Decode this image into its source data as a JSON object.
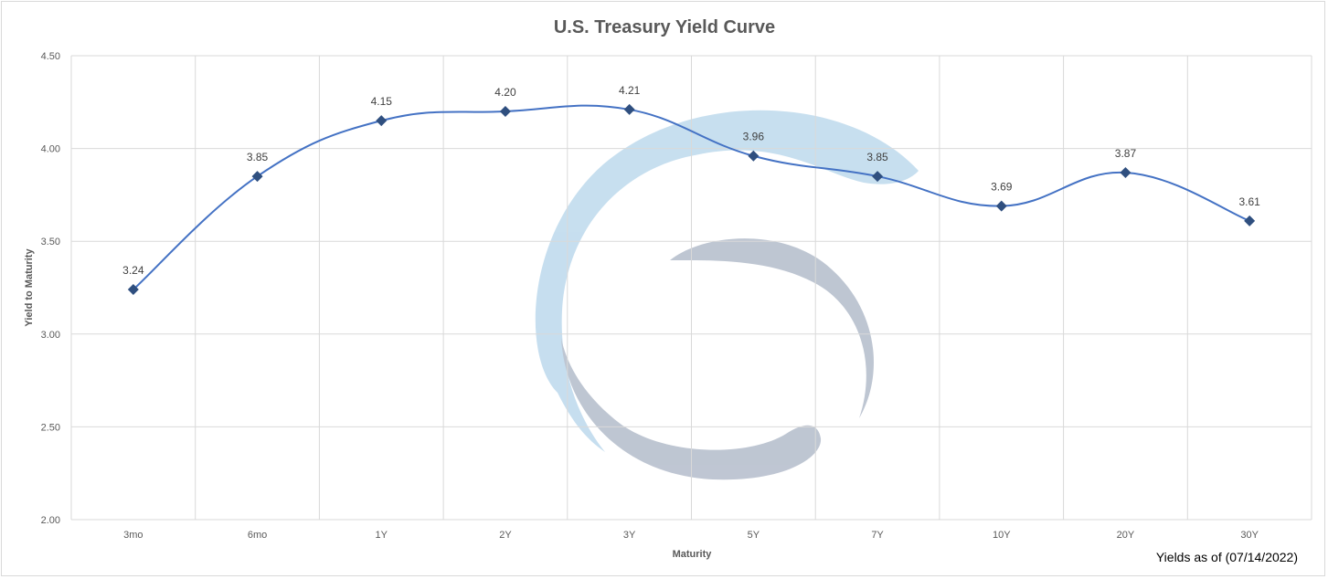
{
  "chart_data": {
    "type": "line",
    "title": "U.S. Treasury Yield Curve",
    "xlabel": "Maturity",
    "ylabel": "Yield to Maturity",
    "categories": [
      "3mo",
      "6mo",
      "1Y",
      "2Y",
      "3Y",
      "5Y",
      "7Y",
      "10Y",
      "20Y",
      "30Y"
    ],
    "series": [
      {
        "values": [
          3.24,
          3.85,
          4.15,
          4.2,
          4.21,
          3.96,
          3.85,
          3.69,
          3.87,
          3.61
        ]
      }
    ],
    "data_labels": [
      "3.24",
      "3.85",
      "4.15",
      "4.20",
      "4.21",
      "3.96",
      "3.85",
      "3.69",
      "3.87",
      "3.61"
    ],
    "ylim": [
      2.0,
      4.5
    ],
    "yticks": [
      "2.00",
      "2.50",
      "3.00",
      "3.50",
      "4.00",
      "4.50"
    ],
    "grid": true,
    "line_color": "#4472c4",
    "marker_color": "#2f4f7f",
    "marker": "diamond",
    "footnote": "Yields as of (07/14/2022)"
  },
  "watermark": {
    "logo_colors": {
      "light": "#b4d4ea",
      "dark": "#a9b3c4"
    }
  }
}
